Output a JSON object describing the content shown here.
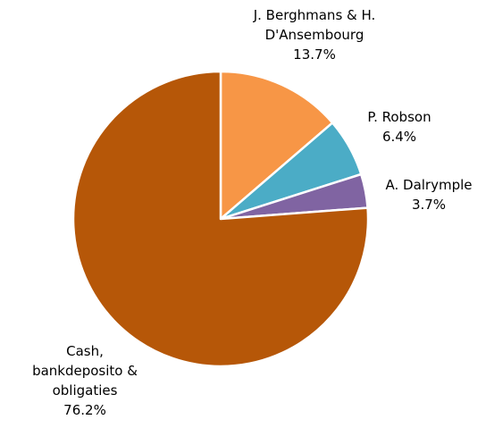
{
  "chart_data": {
    "type": "pie",
    "categories": [
      "J. Berghmans & H. D'Ansembourg",
      "P. Robson",
      "A. Dalrymple",
      "Cash, bankdeposito & obligaties"
    ],
    "values": [
      13.7,
      6.4,
      3.7,
      76.2
    ],
    "value_labels": [
      "13.7%",
      "6.4%",
      "3.7%",
      "76.2%"
    ],
    "colors": [
      "#F79646",
      "#4BACC6",
      "#8064A2",
      "#B65708"
    ]
  }
}
